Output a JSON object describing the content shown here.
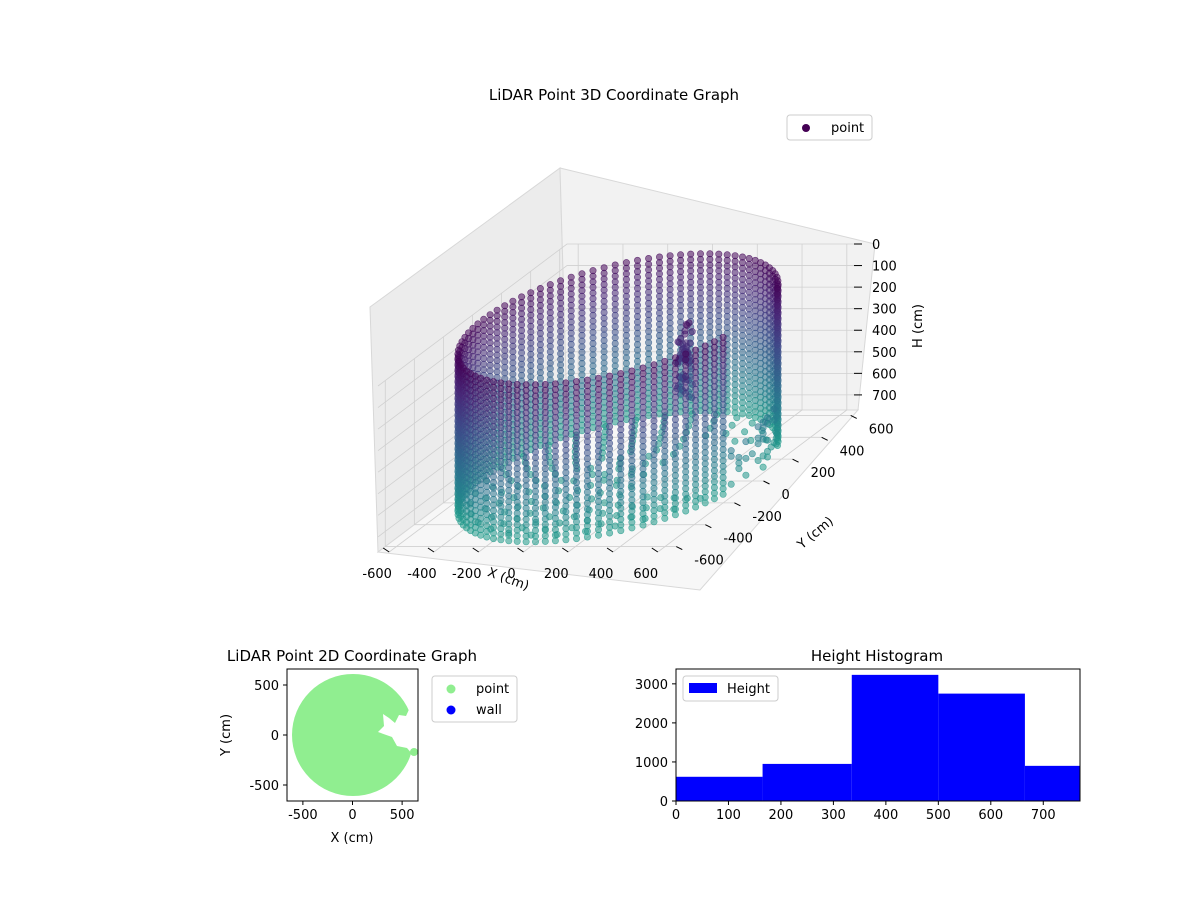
{
  "chart_data": [
    {
      "type": "scatter",
      "projection": "3d",
      "title": "LiDAR Point 3D Coordinate Graph",
      "xlabel": "X (cm)",
      "ylabel": "Y (cm)",
      "zlabel": "H (cm)",
      "x_ticks": [
        -600,
        -400,
        -200,
        0,
        200,
        400,
        600
      ],
      "y_ticks": [
        -600,
        -400,
        -200,
        0,
        200,
        400,
        600
      ],
      "z_ticks": [
        0,
        100,
        200,
        300,
        400,
        500,
        600,
        700
      ],
      "xlim": [
        -650,
        650
      ],
      "ylim": [
        -650,
        650
      ],
      "zlim": [
        0,
        770
      ],
      "z_inverted": true,
      "colormap": "viridis",
      "grid": true,
      "legend": {
        "position": "top-right",
        "entries": [
          {
            "label": "point",
            "color": "#440154"
          }
        ]
      },
      "series": [
        {
          "name": "point",
          "wall_radius_cm": 600,
          "wall_height_cm": [
            0,
            770
          ],
          "description_points": "cylindrical wall of points with floor disc and a column cluster near x=200,y=0"
        }
      ]
    },
    {
      "type": "scatter",
      "title": "LiDAR Point 2D Coordinate Graph",
      "xlabel": "X (cm)",
      "ylabel": "Y (cm)",
      "x_ticks": [
        -500,
        0,
        500
      ],
      "y_ticks": [
        -500,
        0,
        500
      ],
      "xlim": [
        -660,
        660
      ],
      "ylim": [
        -660,
        660
      ],
      "legend": {
        "position": "outside-right",
        "entries": [
          {
            "label": "point",
            "color": "#90ee90"
          },
          {
            "label": "wall",
            "color": "#0000ff"
          }
        ]
      },
      "series": [
        {
          "name": "point",
          "color": "#90ee90",
          "radius_cm": 620,
          "center": [
            0,
            0
          ]
        }
      ]
    },
    {
      "type": "bar",
      "subtype": "histogram",
      "title": "Height Histogram",
      "x_ticks": [
        0,
        100,
        200,
        300,
        400,
        500,
        600,
        700
      ],
      "y_ticks": [
        0,
        1000,
        2000,
        3000
      ],
      "xlim": [
        0,
        770
      ],
      "ylim": [
        0,
        3380
      ],
      "legend": {
        "position": "top-left",
        "entries": [
          {
            "label": "Height",
            "color": "#0000ff"
          }
        ]
      },
      "bins": [
        {
          "start": 0,
          "end": 165,
          "count": 620
        },
        {
          "start": 165,
          "end": 335,
          "count": 950
        },
        {
          "start": 335,
          "end": 500,
          "count": 3230
        },
        {
          "start": 500,
          "end": 665,
          "count": 2750
        },
        {
          "start": 665,
          "end": 770,
          "count": 900
        }
      ],
      "bar_color": "#0000ff"
    }
  ]
}
